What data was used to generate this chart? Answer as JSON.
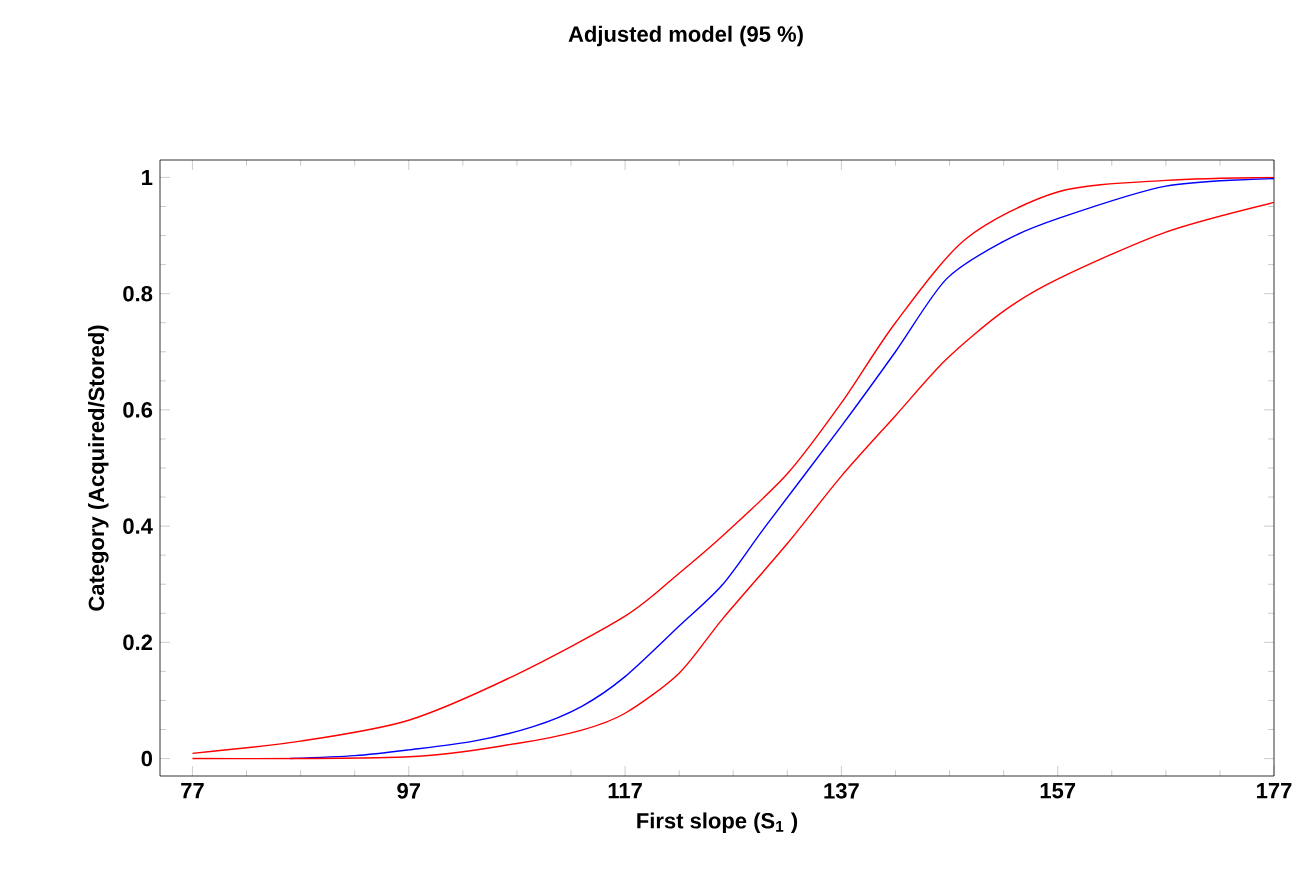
{
  "chart_data": {
    "type": "line",
    "title": "Adjusted model (95 %)",
    "xlabel": "First slope (S$_{1}$ )",
    "ylabel": "Category (Acquired/Stored)",
    "xlim": [
      74,
      177
    ],
    "ylim": [
      -0.03,
      1.03
    ],
    "xticks": [
      77,
      97,
      117,
      137,
      157,
      177
    ],
    "yticks": [
      0,
      0.2,
      0.4,
      0.6,
      0.8,
      1
    ],
    "grid": false,
    "series": [
      {
        "color": "#ff0000",
        "x": [
          77,
          87,
          97,
          107,
          117,
          122,
          126,
          132,
          137,
          142,
          148.5,
          157,
          167,
          177
        ],
        "values": [
          0.009,
          0.03,
          0.066,
          0.145,
          0.245,
          0.319,
          0.383,
          0.49,
          0.612,
          0.75,
          0.894,
          0.975,
          0.995,
          1.0
        ]
      },
      {
        "color": "#0000ff",
        "x": [
          86,
          92,
          97,
          103,
          108.5,
          113,
          117,
          122,
          126,
          130,
          137,
          142,
          146.7,
          152,
          157,
          167,
          177
        ],
        "values": [
          0,
          0.005,
          0.015,
          0.03,
          0.055,
          0.09,
          0.141,
          0.228,
          0.299,
          0.4,
          0.572,
          0.7,
          0.825,
          0.89,
          0.929,
          0.985,
          0.998
        ]
      },
      {
        "color": "#ff0000",
        "x": [
          77,
          97,
          107,
          113,
          117,
          122,
          126,
          132,
          137,
          142,
          146.7,
          152,
          157,
          167,
          177
        ],
        "values": [
          0,
          0.003,
          0.026,
          0.049,
          0.078,
          0.147,
          0.24,
          0.37,
          0.486,
          0.59,
          0.687,
          0.77,
          0.825,
          0.906,
          0.957
        ]
      }
    ]
  }
}
